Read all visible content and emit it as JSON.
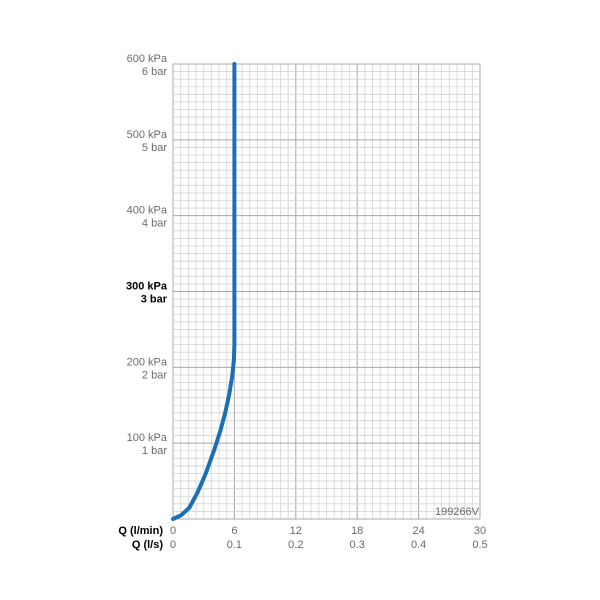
{
  "chart_data": {
    "type": "line",
    "x_unit_primary": "Q (l/min)",
    "x_unit_secondary": "Q (l/s)",
    "x_ticks_lmin": [
      "0",
      "6",
      "12",
      "18",
      "24",
      "30"
    ],
    "x_ticks_ls": [
      "0",
      "0.1",
      "0.2",
      "0.3",
      "0.4",
      "0.5"
    ],
    "xlim": [
      0,
      30
    ],
    "ylim": [
      0,
      600
    ],
    "y_ticks": [
      {
        "value": 100,
        "kpa": "100 kPa",
        "bar": "1 bar",
        "bold": false
      },
      {
        "value": 200,
        "kpa": "200 kPa",
        "bar": "2 bar",
        "bold": false
      },
      {
        "value": 300,
        "kpa": "300 kPa",
        "bar": "3 bar",
        "bold": true
      },
      {
        "value": 400,
        "kpa": "400 kPa",
        "bar": "4 bar",
        "bold": false
      },
      {
        "value": 500,
        "kpa": "500 kPa",
        "bar": "5 bar",
        "bold": false
      },
      {
        "value": 600,
        "kpa": "600 kPa",
        "bar": "6 bar",
        "bold": false
      }
    ],
    "grid": true,
    "series": [
      {
        "color": "#1a6fb5",
        "points": [
          [
            0.0,
            0
          ],
          [
            0.8,
            5
          ],
          [
            1.6,
            15
          ],
          [
            2.4,
            35
          ],
          [
            3.2,
            60
          ],
          [
            4.0,
            90
          ],
          [
            4.6,
            115
          ],
          [
            5.1,
            140
          ],
          [
            5.5,
            165
          ],
          [
            5.8,
            190
          ],
          [
            5.95,
            210
          ],
          [
            6.0,
            230
          ],
          [
            6.0,
            400
          ],
          [
            6.0,
            600
          ]
        ]
      }
    ],
    "code_label": "199266V"
  },
  "colors": {
    "grid_minor": "#d4d4d4",
    "grid_major": "#a8a8a8",
    "curve": "#1a6fb5"
  }
}
